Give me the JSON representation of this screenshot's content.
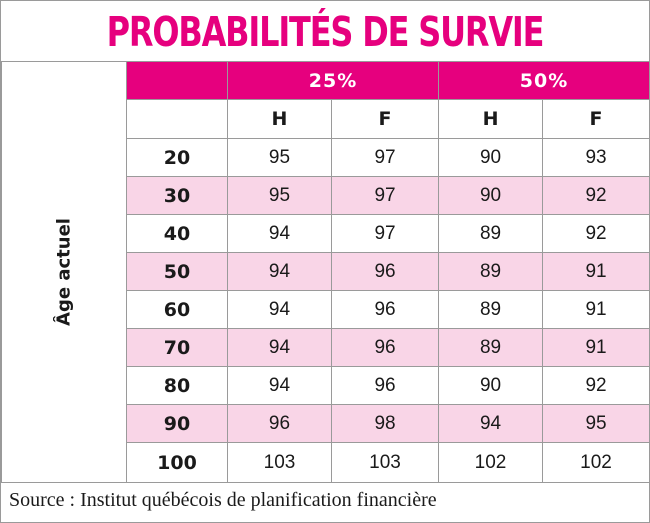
{
  "title": "PROBABILITÉS DE SURVIE",
  "groups": [
    "25%",
    "50%"
  ],
  "sexes": [
    "H",
    "F",
    "H",
    "F"
  ],
  "side_label": "Âge actuel",
  "rows": [
    {
      "age": "20",
      "values": [
        "95",
        "97",
        "90",
        "93"
      ]
    },
    {
      "age": "30",
      "values": [
        "95",
        "97",
        "90",
        "92"
      ]
    },
    {
      "age": "40",
      "values": [
        "94",
        "97",
        "89",
        "92"
      ]
    },
    {
      "age": "50",
      "values": [
        "94",
        "96",
        "89",
        "91"
      ]
    },
    {
      "age": "60",
      "values": [
        "94",
        "96",
        "89",
        "91"
      ]
    },
    {
      "age": "70",
      "values": [
        "94",
        "96",
        "89",
        "91"
      ]
    },
    {
      "age": "80",
      "values": [
        "94",
        "96",
        "90",
        "92"
      ]
    },
    {
      "age": "90",
      "values": [
        "96",
        "98",
        "94",
        "95"
      ]
    },
    {
      "age": "100",
      "values": [
        "103",
        "103",
        "102",
        "102"
      ]
    }
  ],
  "source": "Source : Institut québécois de planification financière",
  "colors": {
    "accent": "#e6007e",
    "stripe": "#f9d5e7"
  }
}
